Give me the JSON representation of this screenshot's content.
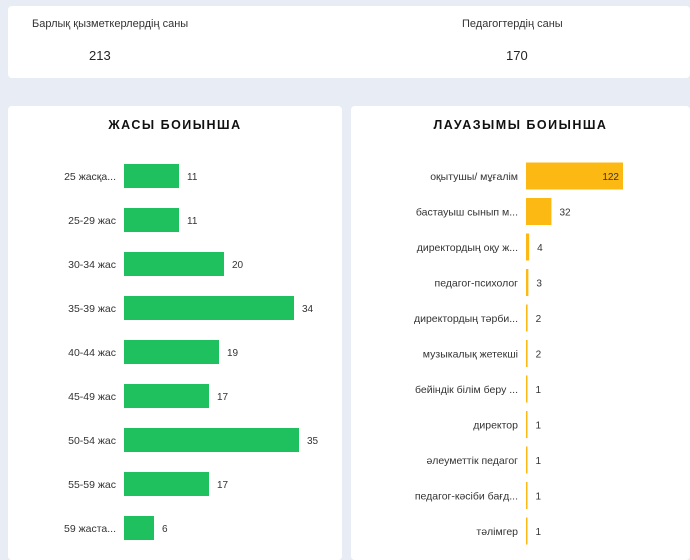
{
  "kpis": [
    {
      "label": "Барлық қызметкерлердің саны",
      "value": "213"
    },
    {
      "label": "Педагогтердің саны",
      "value": "170"
    }
  ],
  "chart_data": [
    {
      "type": "bar",
      "orientation": "horizontal",
      "title": "ЖАСЫ БОИЫНША",
      "color": "#1fc15f",
      "categories": [
        "25 жасқа...",
        "25-29 жас",
        "30-34 жас",
        "35-39 жас",
        "40-44 жас",
        "45-49 жас",
        "50-54 жас",
        "55-59 жас",
        "59 жаста..."
      ],
      "values": [
        11,
        11,
        20,
        34,
        19,
        17,
        35,
        17,
        6
      ]
    },
    {
      "type": "bar",
      "orientation": "horizontal",
      "title": "ЛАУАЗЫМЫ БОИЫНША",
      "color": "#fdb913",
      "categories": [
        "оқытушы/ мұғалім",
        "бастауыш сынып м...",
        "директордың оқу ж...",
        "педагог-психолог",
        "директордың тәрби...",
        "музыкалық жетекші",
        "бейіндік білім беру ...",
        "директор",
        "әлеуметтік педагог",
        "педагог-кәсіби бағд...",
        "тәлімгер"
      ],
      "values": [
        122,
        32,
        4,
        3,
        2,
        2,
        1,
        1,
        1,
        1,
        1
      ]
    }
  ]
}
